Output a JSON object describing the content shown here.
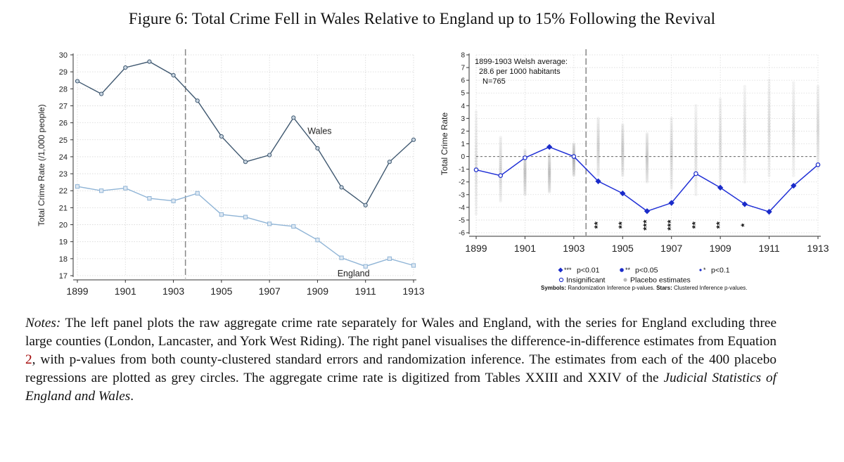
{
  "figure": {
    "title": "Figure 6: Total Crime Fell in Wales Relative to England up to 15% Following the Revival"
  },
  "chart_data": [
    {
      "type": "line",
      "panel": "left",
      "ylabel": "Total Crime Rate (/1,000 people)",
      "xlabel": "",
      "x": [
        1899,
        1900,
        1901,
        1902,
        1903,
        1904,
        1905,
        1906,
        1907,
        1908,
        1909,
        1910,
        1911,
        1912,
        1913
      ],
      "xticks": [
        "1899",
        "1901",
        "1903",
        "1905",
        "1907",
        "1909",
        "1911",
        "1913"
      ],
      "yticks": [
        "17",
        "18",
        "19",
        "20",
        "21",
        "22",
        "23",
        "24",
        "25",
        "26",
        "27",
        "28",
        "29",
        "30"
      ],
      "ylim": [
        17,
        30
      ],
      "xlim": [
        1899,
        1913
      ],
      "vline": 1903.5,
      "grid": true,
      "series": [
        {
          "name": "Wales",
          "color": "#3f5870",
          "marker": "circle",
          "values": [
            28.45,
            27.7,
            29.25,
            29.6,
            28.8,
            27.3,
            25.2,
            23.7,
            24.1,
            26.3,
            24.5,
            22.2,
            21.15,
            23.7,
            25.0
          ]
        },
        {
          "name": "England",
          "color": "#8fb4d6",
          "marker": "square",
          "values": [
            22.25,
            22.0,
            22.15,
            21.55,
            21.4,
            21.85,
            20.6,
            20.45,
            20.05,
            19.9,
            19.1,
            18.05,
            17.55,
            18.0,
            17.6
          ]
        }
      ]
    },
    {
      "type": "scatter",
      "panel": "right",
      "ylabel": "Total Crime Rate",
      "xlabel": "",
      "x": [
        1899,
        1900,
        1901,
        1902,
        1903,
        1904,
        1905,
        1906,
        1907,
        1908,
        1909,
        1910,
        1911,
        1912,
        1913
      ],
      "xticks": [
        "1899",
        "1901",
        "1903",
        "1905",
        "1907",
        "1909",
        "1911",
        "1913"
      ],
      "yticks": [
        "-6",
        "-5",
        "-4",
        "-3",
        "-2",
        "-1",
        "0",
        "1",
        "2",
        "3",
        "4",
        "5",
        "6",
        "7",
        "8"
      ],
      "ylim": [
        -6,
        8
      ],
      "xlim": [
        1899,
        1913
      ],
      "vline": 1903.5,
      "hline": 0,
      "grid": true,
      "annotation": [
        "1899-1903 Welsh average:",
        "28.6 per 1000 habitants",
        "N=765"
      ],
      "estimates": {
        "color": "#1f2fd6",
        "values": [
          -1.05,
          -1.5,
          -0.1,
          0.75,
          0.0,
          -1.95,
          -2.9,
          -4.3,
          -3.65,
          -1.35,
          -2.45,
          -3.75,
          -4.35,
          -2.3,
          -0.65
        ],
        "markers": [
          "open",
          "open",
          "open",
          "filled",
          "open",
          "filled",
          "filled",
          "filled",
          "filled",
          "open",
          "filled",
          "filled",
          "filled",
          "filled",
          "open"
        ]
      },
      "placebo_ranges": [
        [
          -4.5,
          3.5
        ],
        [
          -3.5,
          1.5
        ],
        [
          -3.0,
          0.5
        ],
        [
          -2.8,
          0.2
        ],
        [
          -1.5,
          1.0
        ],
        [
          -1.5,
          3.0
        ],
        [
          -1.5,
          2.5
        ],
        [
          -2.0,
          1.8
        ],
        [
          -2.5,
          3.0
        ],
        [
          -3.0,
          4.0
        ],
        [
          -2.5,
          4.5
        ],
        [
          -2.0,
          5.5
        ],
        [
          -1.5,
          6.0
        ],
        [
          -1.5,
          5.8
        ],
        [
          -1.0,
          5.5
        ]
      ],
      "stars": [
        {
          "x": 1904,
          "label": "**"
        },
        {
          "x": 1905,
          "label": "**"
        },
        {
          "x": 1906,
          "label": "***"
        },
        {
          "x": 1907,
          "label": "***"
        },
        {
          "x": 1908,
          "label": "**"
        },
        {
          "x": 1909,
          "label": "**"
        },
        {
          "x": 1910,
          "label": "*"
        }
      ],
      "legend": {
        "items": [
          {
            "marker": "*** ",
            "label": "p<0.01"
          },
          {
            "marker": "** ",
            "label": "p<0.05"
          },
          {
            "marker": "* ",
            "label": "p<0.1"
          },
          {
            "marker": "",
            "label": "Insignificant"
          },
          {
            "marker": "",
            "label": "Placebo estimates"
          }
        ],
        "footnote_bold1": "Symbols:",
        "footnote_text1": " Randomization Inference p-values. ",
        "footnote_bold2": "Stars:",
        "footnote_text2": " Clustered Inference p-values."
      }
    }
  ],
  "notes": {
    "label": "Notes:",
    "part1": " The left panel plots the raw aggregate crime rate separately for Wales and England, with the series for England excluding three large counties (London, Lancaster, and York West Riding). The right panel visualises the difference-in-difference estimates from Equation ",
    "ref": "2",
    "part2": ", with p-values from both county-clustered standard errors and randomization inference. The estimates from each of the 400 placebo regressions are plotted as grey circles. The aggregate crime rate is digitized from Tables XXIII and XXIV of the ",
    "italic": "Judicial Statistics of England and Wales",
    "part3": "."
  }
}
